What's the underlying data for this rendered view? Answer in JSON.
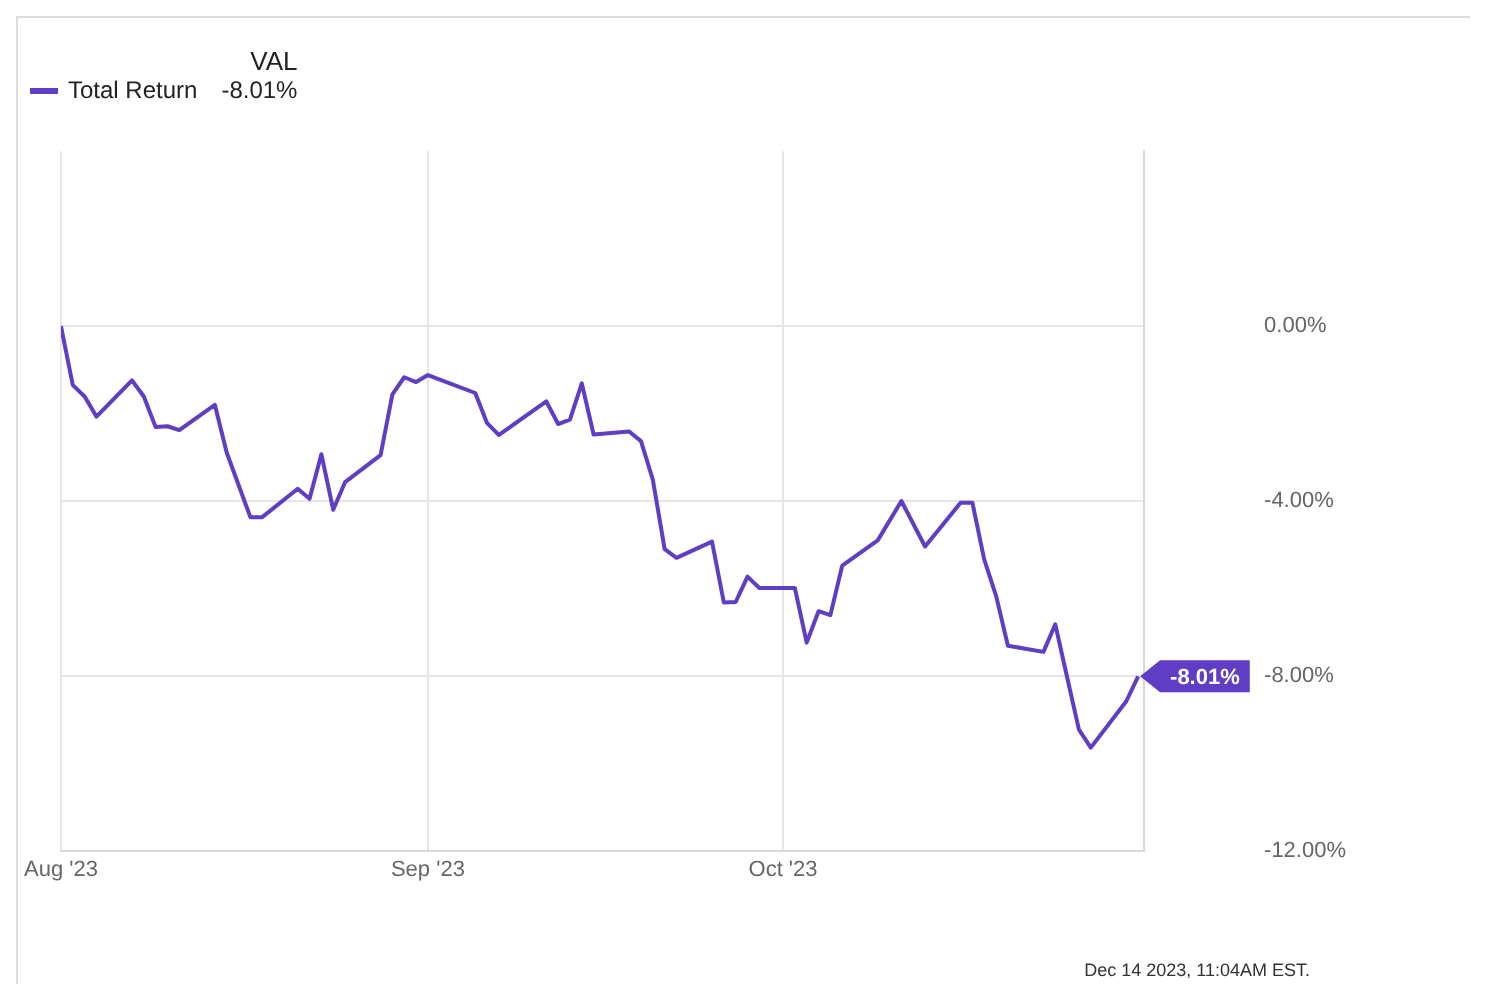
{
  "chart_data": {
    "type": "line",
    "legend_title": "VAL",
    "legend": "top left",
    "grid": true,
    "marker": "none",
    "line_style": "solid",
    "x": [
      "2023-08-01",
      "2023-08-02",
      "2023-08-03",
      "2023-08-04",
      "2023-08-07",
      "2023-08-08",
      "2023-08-09",
      "2023-08-10",
      "2023-08-11",
      "2023-08-14",
      "2023-08-15",
      "2023-08-17",
      "2023-08-18",
      "2023-08-21",
      "2023-08-22",
      "2023-08-23",
      "2023-08-24",
      "2023-08-25",
      "2023-08-28",
      "2023-08-29",
      "2023-08-30",
      "2023-08-31",
      "2023-09-01",
      "2023-09-05",
      "2023-09-06",
      "2023-09-07",
      "2023-09-11",
      "2023-09-12",
      "2023-09-13",
      "2023-09-14",
      "2023-09-15",
      "2023-09-18",
      "2023-09-19",
      "2023-09-20",
      "2023-09-21",
      "2023-09-22",
      "2023-09-25",
      "2023-09-26",
      "2023-09-27",
      "2023-09-28",
      "2023-09-29",
      "2023-10-02",
      "2023-10-03",
      "2023-10-04",
      "2023-10-05",
      "2023-10-06",
      "2023-10-09",
      "2023-10-11",
      "2023-10-13",
      "2023-10-16",
      "2023-10-17",
      "2023-10-18",
      "2023-10-19",
      "2023-10-20",
      "2023-10-23",
      "2023-10-24",
      "2023-10-25",
      "2023-10-26",
      "2023-10-27",
      "2023-10-30",
      "2023-10-31"
    ],
    "series": [
      {
        "name": "Total Return",
        "color": "#5f3dc4",
        "values": [
          0,
          -1.35,
          -1.61,
          -2.07,
          -1.24,
          -1.61,
          -2.31,
          -2.29,
          -2.38,
          -1.8,
          -2.89,
          -4.37,
          -4.37,
          -3.72,
          -3.95,
          -2.93,
          -4.2,
          -3.57,
          -2.95,
          -1.56,
          -1.17,
          -1.28,
          -1.12,
          -1.53,
          -2.22,
          -2.49,
          -1.72,
          -2.24,
          -2.14,
          -1.31,
          -2.48,
          -2.41,
          -2.63,
          -3.51,
          -5.1,
          -5.3,
          -4.93,
          -6.32,
          -6.31,
          -5.73,
          -5.99,
          -5.99,
          -7.24,
          -6.52,
          -6.61,
          -5.48,
          -4.9,
          -4,
          -5.04,
          -4.04,
          -4.04,
          -5.34,
          -6.17,
          -7.31,
          -7.45,
          -6.82,
          -8.03,
          -9.23,
          -9.64,
          -8.58,
          -8.01
        ]
      }
    ],
    "xlim": [
      "2023-08-01",
      "2023-10-31T12:00"
    ],
    "xticks": [
      {
        "value": "2023-08-01",
        "label": "Aug '23"
      },
      {
        "value": "2023-09-01",
        "label": "Sep '23"
      },
      {
        "value": "2023-10-01",
        "label": "Oct '23"
      }
    ],
    "ylim": [
      -12,
      4
    ],
    "yticks": [
      {
        "value": 0,
        "label": "0.00%"
      },
      {
        "value": -4,
        "label": "-4.00%"
      },
      {
        "value": -8,
        "label": "-8.00%"
      },
      {
        "value": -12,
        "label": "-12.00%"
      }
    ],
    "annotations": [
      {
        "text": "-8.01%",
        "x": "2023-10-31",
        "y": -8.01
      },
      "-8.01%",
      "Dec 14 2023, 11:04AM EST."
    ]
  }
}
